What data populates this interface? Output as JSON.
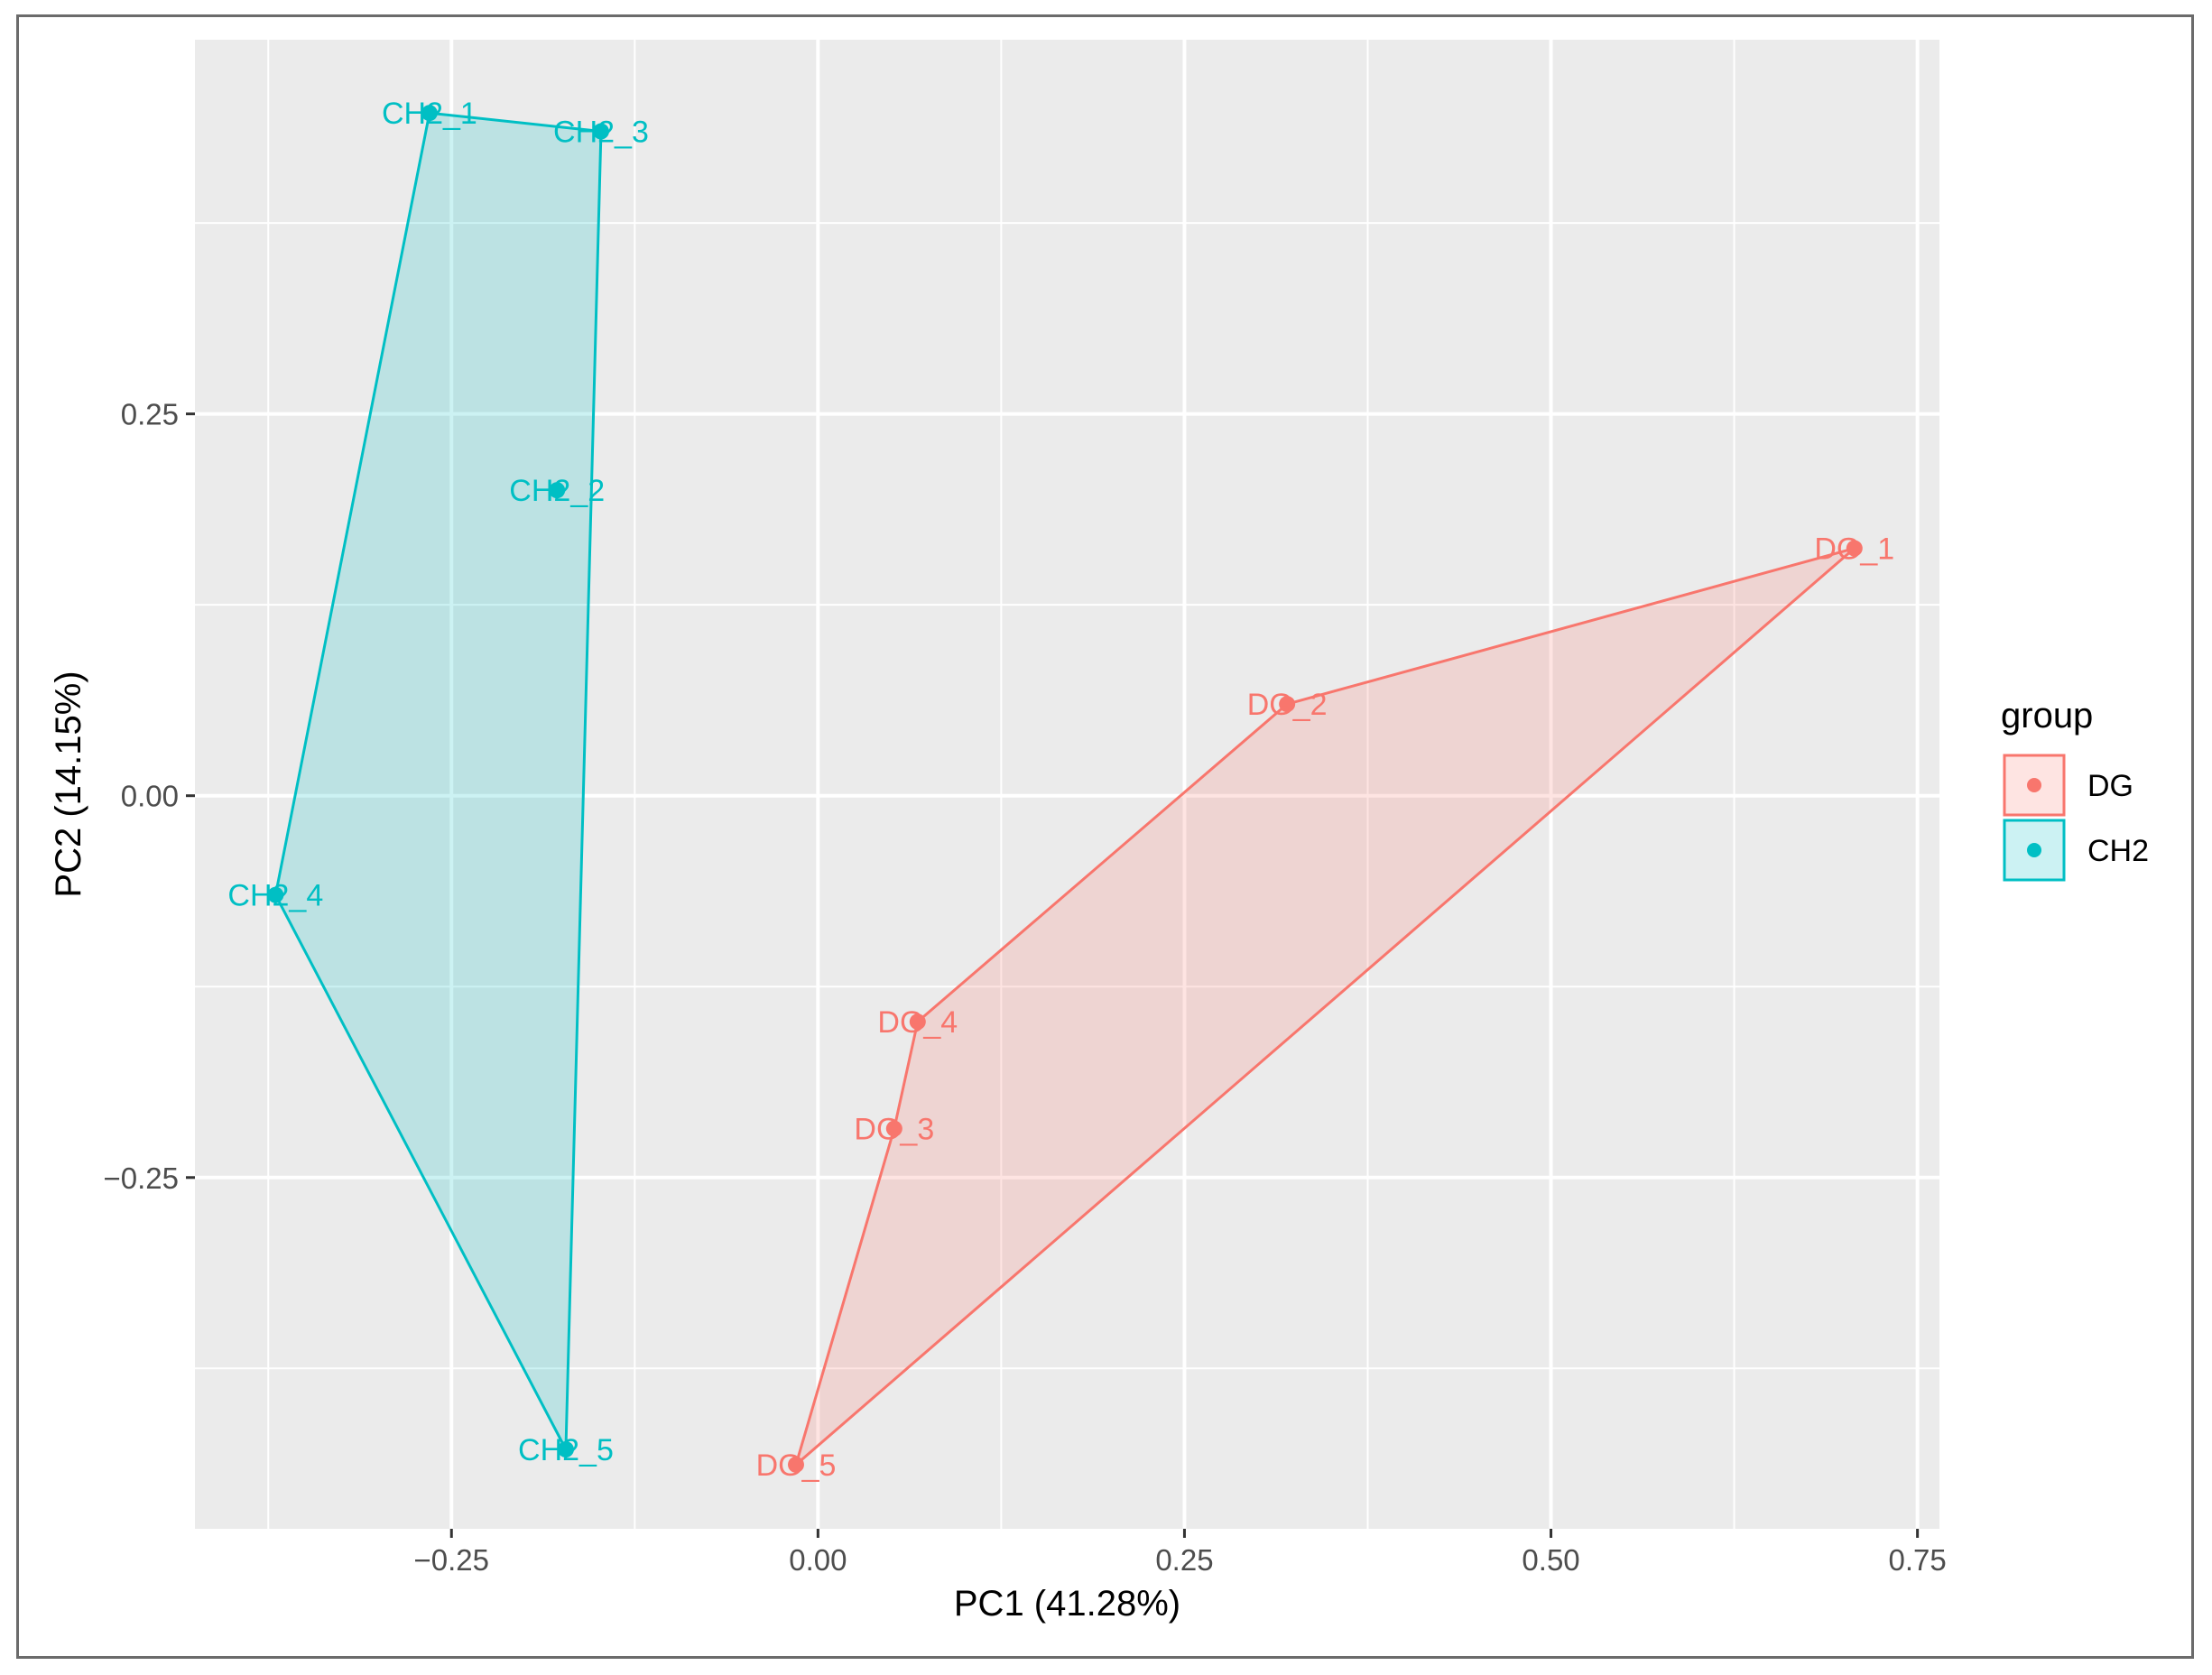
{
  "chart_data": {
    "type": "scatter",
    "xlabel": "PC1 (41.28%)",
    "ylabel": "PC2 (14.15%)",
    "xlim": [
      -0.425,
      0.765
    ],
    "ylim": [
      -0.48,
      0.495
    ],
    "x_ticks": [
      -0.25,
      0.0,
      0.25,
      0.5,
      0.75
    ],
    "x_tick_labels": [
      "−0.25",
      "0.00",
      "0.25",
      "0.50",
      "0.75"
    ],
    "y_ticks": [
      -0.25,
      0.0,
      0.25
    ],
    "y_tick_labels": [
      "−0.25",
      "0.00",
      "0.25"
    ],
    "grid": true,
    "legend": {
      "title": "group",
      "position": "right",
      "entries": [
        {
          "label": "DG",
          "color": "#F8766D"
        },
        {
          "label": "CH2",
          "color": "#00BFC4"
        }
      ]
    },
    "series": [
      {
        "name": "DG",
        "color": "#F8766D",
        "points": [
          {
            "label": "DG_1",
            "x": 0.707,
            "y": 0.162
          },
          {
            "label": "DG_2",
            "x": 0.32,
            "y": 0.06
          },
          {
            "label": "DG_3",
            "x": 0.052,
            "y": -0.218
          },
          {
            "label": "DG_4",
            "x": 0.068,
            "y": -0.148
          },
          {
            "label": "DG_5",
            "x": -0.015,
            "y": -0.438
          }
        ],
        "hull": [
          "DG_1",
          "DG_2",
          "DG_4",
          "DG_3",
          "DG_5"
        ]
      },
      {
        "name": "CH2",
        "color": "#00BFC4",
        "points": [
          {
            "label": "CH2_1",
            "x": -0.265,
            "y": 0.447
          },
          {
            "label": "CH2_2",
            "x": -0.178,
            "y": 0.2
          },
          {
            "label": "CH2_3",
            "x": -0.148,
            "y": 0.435
          },
          {
            "label": "CH2_4",
            "x": -0.37,
            "y": -0.065
          },
          {
            "label": "CH2_5",
            "x": -0.172,
            "y": -0.428
          }
        ],
        "hull": [
          "CH2_1",
          "CH2_3",
          "CH2_5",
          "CH2_4"
        ]
      }
    ]
  }
}
